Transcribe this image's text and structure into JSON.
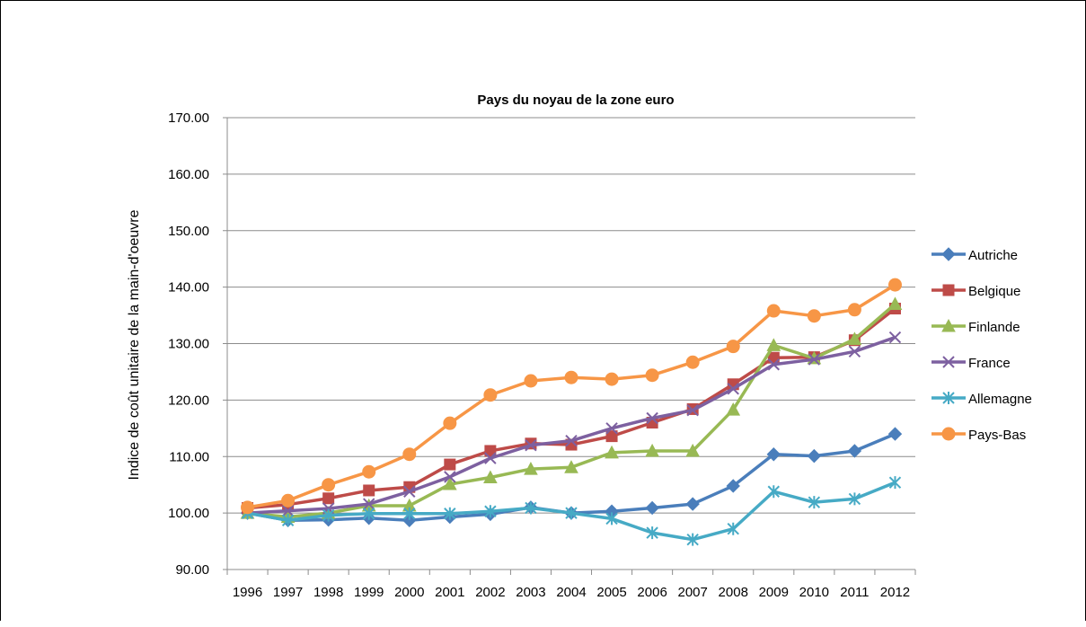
{
  "chart_data": {
    "type": "line",
    "title": "Pays du noyau de la zone euro",
    "xlabel": "",
    "ylabel": "Indice de coût unitaire de la main-d'oeuvre",
    "ylim": [
      90,
      170
    ],
    "yticks": [
      "90.00",
      "100.00",
      "110.00",
      "120.00",
      "130.00",
      "140.00",
      "150.00",
      "160.00",
      "170.00"
    ],
    "grid": "horizontal",
    "legend": "right",
    "x": [
      "1996",
      "1997",
      "1998",
      "1999",
      "2000",
      "2001",
      "2002",
      "2003",
      "2004",
      "2005",
      "2006",
      "2007",
      "2008",
      "2009",
      "2010",
      "2011",
      "2012"
    ],
    "series": [
      {
        "name": "Autriche",
        "color": "#4A7EBB",
        "marker": "diamond",
        "values": [
          100.0,
          98.7,
          98.8,
          99.1,
          98.7,
          99.3,
          99.8,
          101.0,
          100.0,
          100.3,
          100.9,
          101.6,
          104.8,
          110.4,
          110.1,
          111.0,
          114.0
        ]
      },
      {
        "name": "Belgique",
        "color": "#BE4B48",
        "marker": "square",
        "values": [
          100.9,
          101.5,
          102.6,
          104.0,
          104.6,
          108.6,
          111.0,
          112.3,
          112.1,
          113.6,
          116.0,
          118.4,
          122.8,
          127.5,
          127.6,
          130.6,
          136.2
        ]
      },
      {
        "name": "Finlande",
        "color": "#98B954",
        "marker": "triangle",
        "values": [
          100.0,
          99.3,
          100.0,
          101.3,
          101.3,
          105.1,
          106.3,
          107.8,
          108.1,
          110.7,
          111.0,
          111.0,
          118.3,
          129.7,
          127.4,
          130.8,
          137.0
        ]
      },
      {
        "name": "France",
        "color": "#7D60A0",
        "marker": "x",
        "values": [
          100.0,
          100.4,
          100.8,
          101.6,
          103.8,
          106.4,
          109.7,
          112.0,
          112.8,
          115.0,
          116.8,
          118.2,
          122.0,
          126.3,
          127.2,
          128.6,
          131.1
        ]
      },
      {
        "name": "Allemagne",
        "color": "#46AAC5",
        "marker": "asterisk",
        "values": [
          100.0,
          98.7,
          99.6,
          99.9,
          99.9,
          99.9,
          100.3,
          100.9,
          100.0,
          99.0,
          96.5,
          95.3,
          97.2,
          103.8,
          101.9,
          102.5,
          105.4
        ]
      },
      {
        "name": "Pays-Bas",
        "color": "#F79646",
        "marker": "circle",
        "values": [
          101.0,
          102.2,
          105.0,
          107.3,
          110.4,
          115.9,
          120.9,
          123.4,
          124.0,
          123.7,
          124.4,
          126.7,
          129.5,
          135.8,
          134.9,
          136.0,
          140.4
        ]
      }
    ]
  }
}
